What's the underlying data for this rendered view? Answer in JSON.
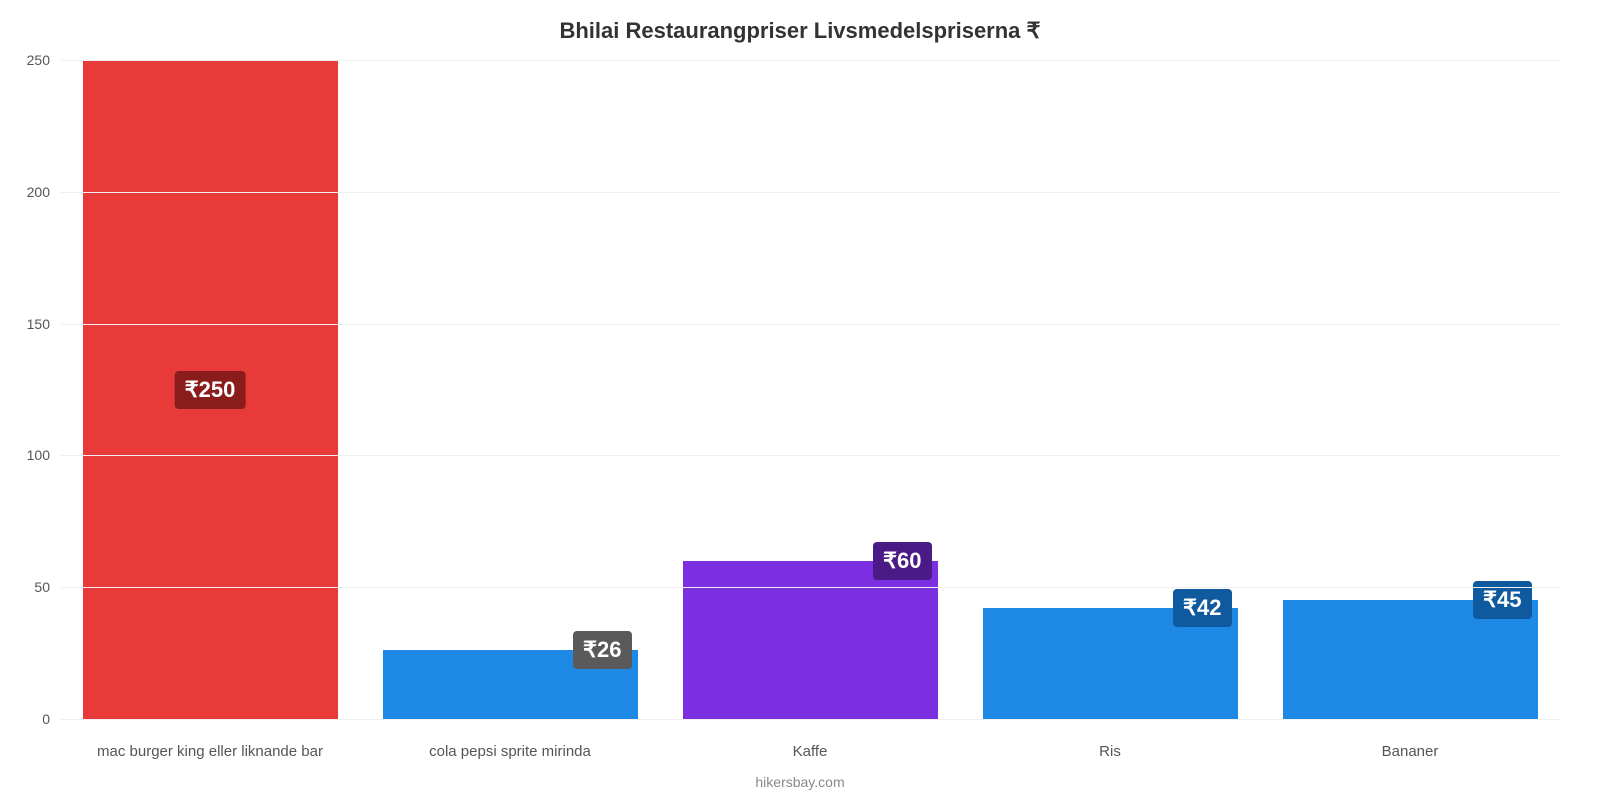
{
  "chart": {
    "type": "bar",
    "title": "Bhilai Restaurangpriser Livsmedelspriserna ₹",
    "title_fontsize": 22,
    "title_color": "#333333",
    "background_color": "#ffffff",
    "grid_color": "#f0f0f0",
    "axis_color": "#999999",
    "ylim_min": 0,
    "ylim_max": 250,
    "ytick_step": 50,
    "yticks": [
      0,
      50,
      100,
      150,
      200,
      250
    ],
    "tick_fontsize": 14,
    "tick_color": "#555555",
    "bar_width_ratio": 0.85,
    "categories": [
      "mac burger king eller liknande bar",
      "cola pepsi sprite mirinda",
      "Kaffe",
      "Ris",
      "Bananer"
    ],
    "values": [
      250,
      26,
      60,
      42,
      45
    ],
    "value_labels": [
      "₹250",
      "₹26",
      "₹60",
      "₹42",
      "₹45"
    ],
    "bar_colors": [
      "#e93a3a",
      "#1e88e5",
      "#7c2fe0",
      "#1e88e5",
      "#1e88e5"
    ],
    "badge_bg_colors": [
      "#8b1c1c",
      "#5a5a5a",
      "#4a1a87",
      "#0f5a9e",
      "#0f5a9e"
    ],
    "badge_fontsize": 22,
    "badge_text_color": "#ffffff",
    "xlabel_fontsize": 15,
    "xlabel_color": "#555555",
    "credit": "hikersbay.com",
    "credit_color": "#888888",
    "credit_fontsize": 14
  }
}
